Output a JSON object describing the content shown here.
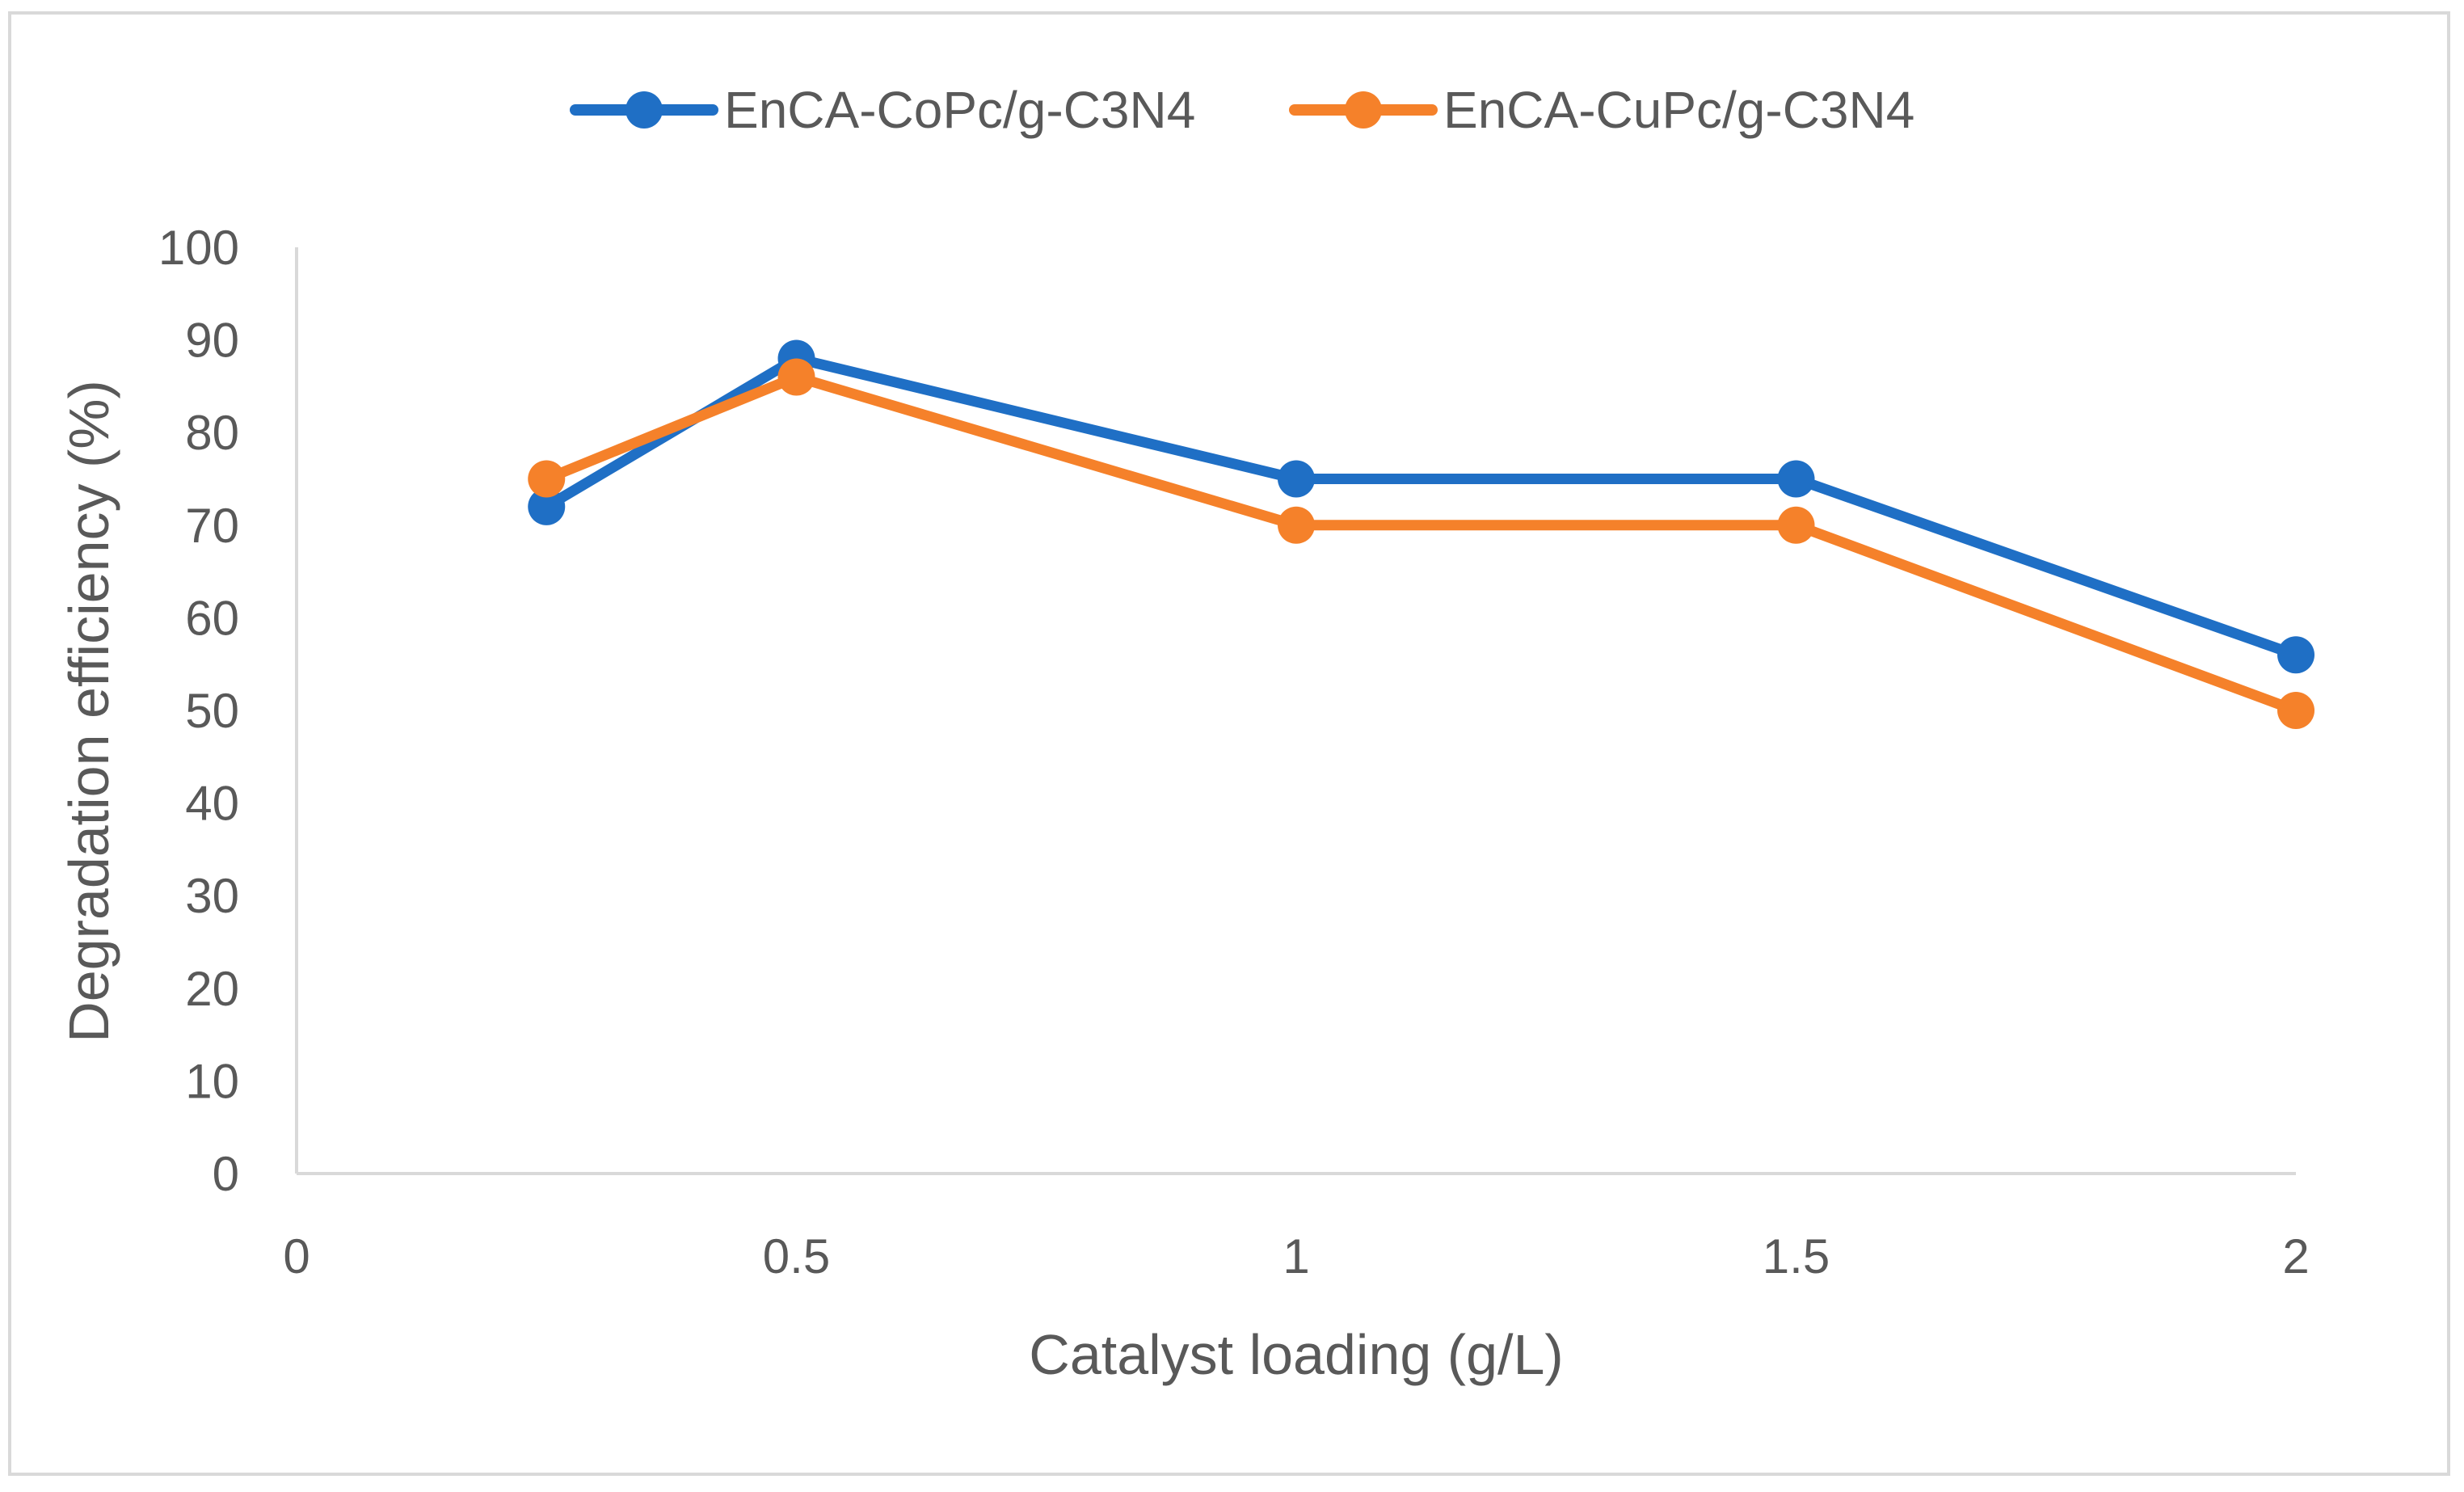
{
  "chart_data": {
    "type": "line",
    "title": "",
    "xlabel": "Catalyst loading (g/L)",
    "ylabel": "Degradation efficiency (%)",
    "xlim": [
      0,
      2
    ],
    "ylim": [
      0,
      100
    ],
    "xticks": [
      0,
      0.5,
      1,
      1.5,
      2
    ],
    "xtick_labels": [
      "0",
      "0.5",
      "1",
      "1.5",
      "2"
    ],
    "yticks": [
      0,
      10,
      20,
      30,
      40,
      50,
      60,
      70,
      80,
      90,
      100
    ],
    "ytick_labels": [
      "0",
      "10",
      "20",
      "30",
      "40",
      "50",
      "60",
      "70",
      "80",
      "90",
      "100"
    ],
    "grid": false,
    "legend_position": "top-center",
    "series": [
      {
        "name": "EnCA-CoPc/g-C3N4",
        "color": "#1f6fc5",
        "x": [
          0.25,
          0.5,
          1,
          1.5,
          2
        ],
        "y": [
          72,
          88,
          75,
          75,
          56
        ]
      },
      {
        "name": "EnCA-CuPc/g-C3N4",
        "color": "#f5812a",
        "x": [
          0.25,
          0.5,
          1,
          1.5,
          2
        ],
        "y": [
          75,
          86,
          70,
          70,
          50
        ]
      }
    ]
  }
}
